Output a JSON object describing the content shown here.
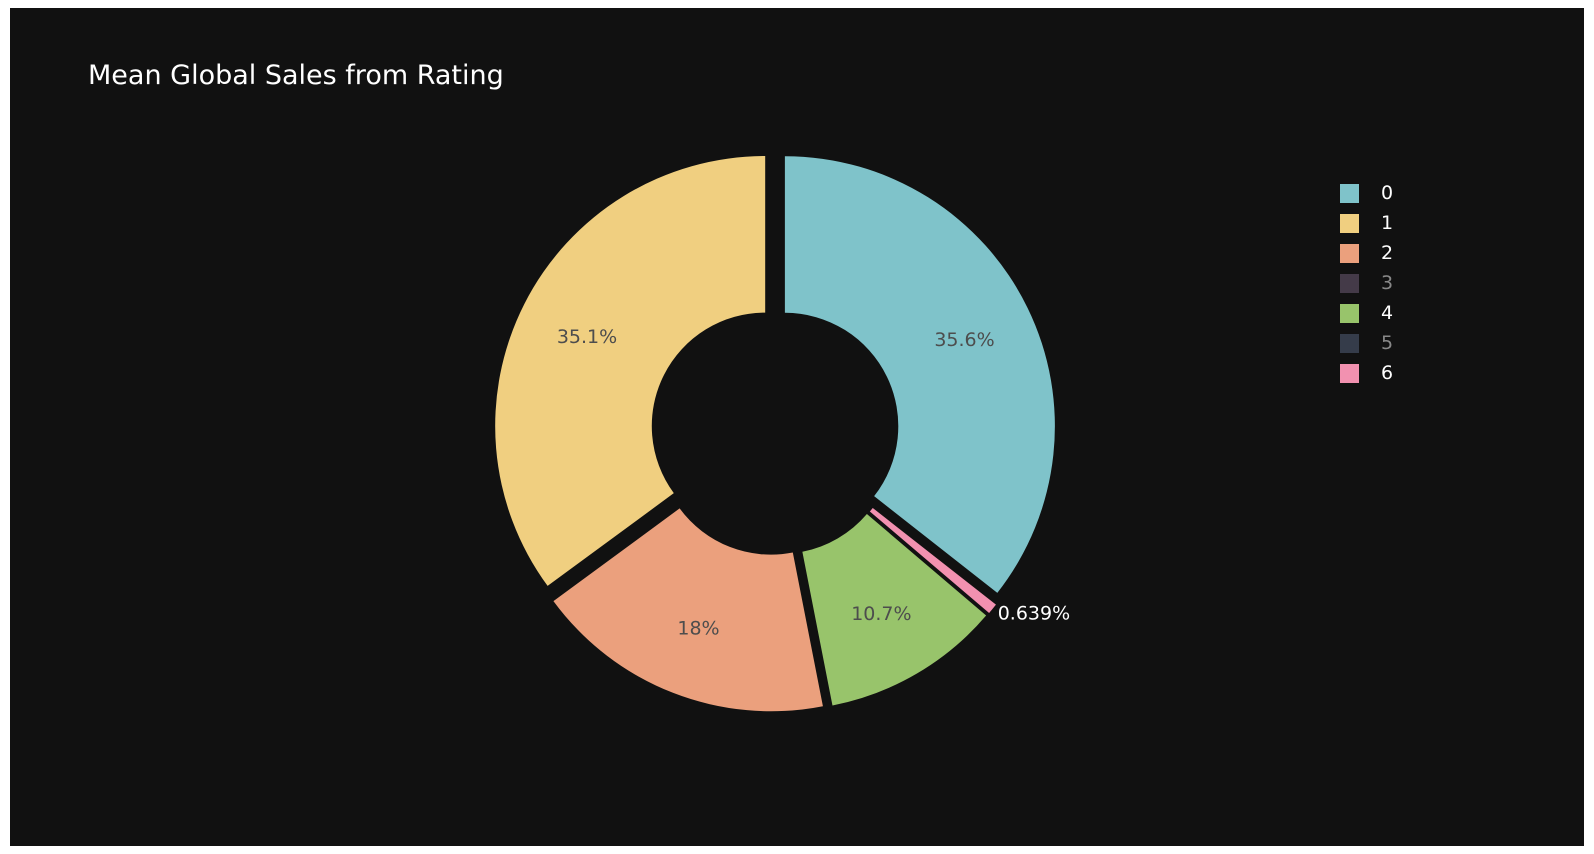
{
  "chart_data": {
    "type": "pie",
    "hole": 0.42,
    "title": "Mean Global Sales from Rating",
    "legend_position": "top-right",
    "slices": [
      {
        "label": "0",
        "percent": 35.6,
        "text": "35.6%",
        "color": "#7fc3ca",
        "visible": true
      },
      {
        "label": "1",
        "percent": 35.1,
        "text": "35.1%",
        "color": "#f0cf80",
        "visible": true
      },
      {
        "label": "2",
        "percent": 18.0,
        "text": "18%",
        "color": "#eba07d",
        "visible": true
      },
      {
        "label": "3",
        "percent": 0,
        "text": "",
        "color": "#77647f",
        "visible": false
      },
      {
        "label": "4",
        "percent": 10.7,
        "text": "10.7%",
        "color": "#98c46b",
        "visible": true
      },
      {
        "label": "5",
        "percent": 0,
        "text": "",
        "color": "#5a6884",
        "visible": false
      },
      {
        "label": "6",
        "percent": 0.639,
        "text": "0.639%",
        "color": "#f291b0",
        "visible": true
      }
    ],
    "draw_order": [
      "0",
      "6",
      "4",
      "2",
      "1"
    ],
    "inside_text_color": "#4d4d4d",
    "outside_text_color": "#ffffff",
    "background": "#111111"
  }
}
